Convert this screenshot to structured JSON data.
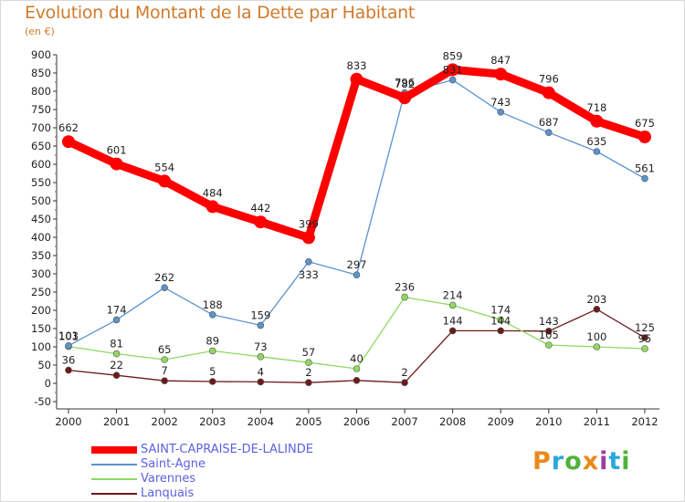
{
  "header": {
    "title": "Evolution du Montant de la Dette par Habitant",
    "unit": "(en €)"
  },
  "logo": {
    "text": "ProXiti",
    "letters": [
      "P",
      "r",
      "o",
      "x",
      "i",
      "t",
      "i"
    ],
    "colors": [
      "#e98a1c",
      "#2aa8dc",
      "#4fb23b",
      "#e98a1c",
      "#9b3ea0",
      "#2aa8dc",
      "#4fb23b"
    ]
  },
  "chart_data": {
    "type": "line",
    "title": "Evolution du Montant de la Dette par Habitant",
    "subtitle": "(en €)",
    "x": [
      "2000",
      "2001",
      "2002",
      "2003",
      "2004",
      "2005",
      "2006",
      "2007",
      "2008",
      "2009",
      "2010",
      "2011",
      "2012"
    ],
    "ylim": [
      -50,
      900
    ],
    "yticks": [
      -50,
      0,
      50,
      100,
      150,
      200,
      250,
      300,
      350,
      400,
      450,
      500,
      550,
      600,
      650,
      700,
      750,
      800,
      850,
      900
    ],
    "grid": false,
    "legend": "bottom-left",
    "series": [
      {
        "name": "SAINT-CAPRAISE-DE-LALINDE",
        "color": "#ff0000",
        "emphasis": true,
        "values": [
          662,
          601,
          554,
          484,
          442,
          399,
          833,
          782,
          859,
          847,
          796,
          718,
          675
        ],
        "label_positions": [
          "above",
          "above",
          "above",
          "above",
          "above",
          "above",
          "above",
          "above",
          "above",
          "above",
          "above",
          "above",
          "above"
        ]
      },
      {
        "name": "Saint-Agne",
        "color": "#5b93cc",
        "emphasis": false,
        "values": [
          103,
          174,
          262,
          188,
          159,
          333,
          297,
          796,
          831,
          743,
          687,
          635,
          561
        ],
        "label_positions": [
          "above",
          "above",
          "above",
          "above",
          "above",
          "below",
          "above",
          "above",
          "above",
          "above",
          "above",
          "above",
          "above"
        ]
      },
      {
        "name": "Varennes",
        "color": "#8fd862",
        "emphasis": false,
        "values": [
          101,
          81,
          65,
          89,
          73,
          57,
          40,
          236,
          214,
          174,
          105,
          100,
          95
        ],
        "label_positions": [
          "above",
          "above",
          "above",
          "above",
          "above",
          "above",
          "above",
          "above",
          "above",
          "above",
          "above",
          "above",
          "above"
        ]
      },
      {
        "name": "Lanquais",
        "color": "#6b1a1a",
        "emphasis": false,
        "values": [
          36,
          22,
          7,
          5,
          4,
          2,
          8,
          2,
          144,
          144,
          143,
          203,
          125
        ],
        "label_positions": [
          "above",
          "above",
          "above",
          "above",
          "above",
          "above",
          "none",
          "above",
          "above",
          "above",
          "above",
          "above",
          "above"
        ]
      }
    ]
  }
}
